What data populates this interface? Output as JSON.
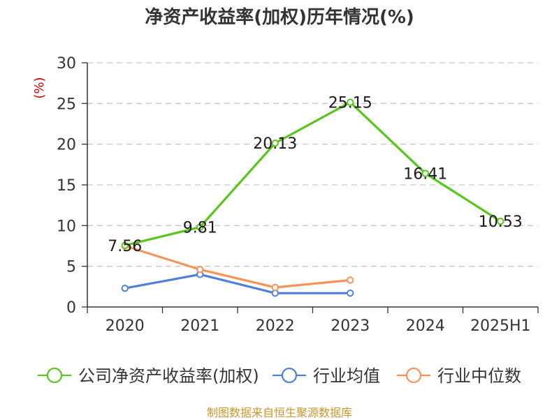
{
  "title": "净资产收益率(加权)历年情况(%)",
  "source": "制图数据来自恒生聚源数据库",
  "chart_data": {
    "type": "line",
    "title": "净资产收益率(加权)历年情况(%)",
    "ylabel": "(%)",
    "xlabel": "",
    "categories": [
      "2020",
      "2021",
      "2022",
      "2023",
      "2024",
      "2025H1"
    ],
    "ylim": [
      0,
      30
    ],
    "yticks": [
      0,
      5,
      10,
      15,
      20,
      25,
      30
    ],
    "grid": true,
    "legend_position": "bottom",
    "series": [
      {
        "name": "公司净资产收益率(加权)",
        "color": "#5bc51f",
        "values": [
          7.56,
          9.81,
          20.13,
          25.15,
          16.41,
          10.53
        ],
        "labels": [
          "7.56",
          "9.81",
          "20.13",
          "25.15",
          "16.41",
          "10.53"
        ]
      },
      {
        "name": "行业均值",
        "color": "#4f7fdb",
        "values": [
          2.3,
          4.0,
          1.7,
          1.7,
          null,
          null
        ]
      },
      {
        "name": "行业中位数",
        "color": "#f7925a",
        "values": [
          7.5,
          4.6,
          2.4,
          3.3,
          null,
          null
        ]
      }
    ]
  }
}
